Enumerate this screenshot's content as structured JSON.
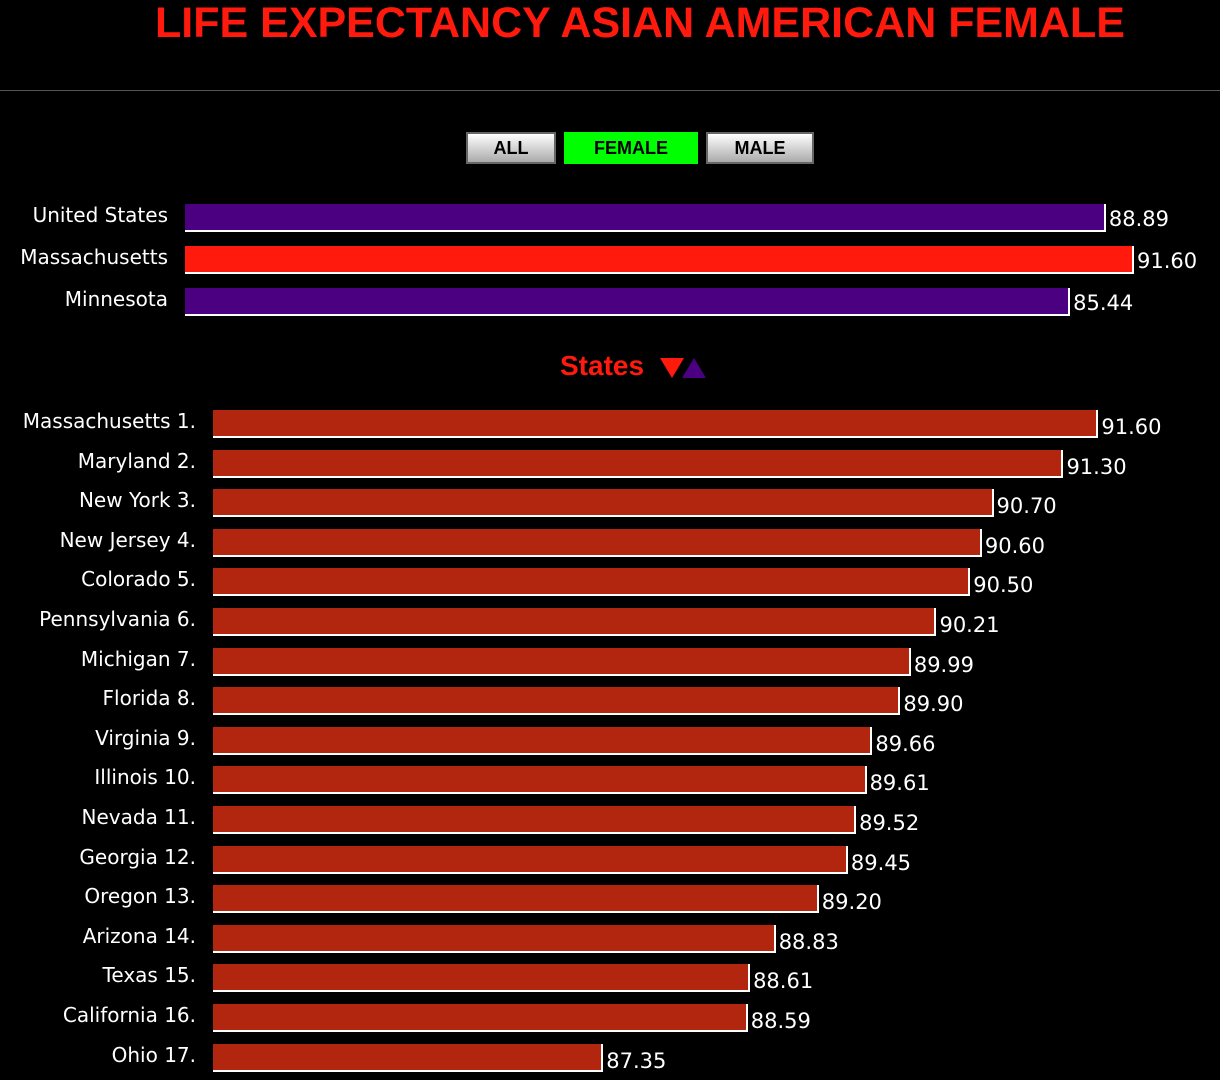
{
  "chart_data": {
    "type": "bar",
    "title": "LIFE EXPECTANCY ASIAN AMERICAN FEMALE",
    "summary": {
      "categories": [
        "United States",
        "Massachusetts",
        "Minnesota"
      ],
      "values": [
        88.89,
        91.6,
        85.44
      ],
      "colors": [
        "#4b0082",
        "#ff1a0d",
        "#4b0082"
      ],
      "xlim": [
        0,
        93
      ]
    },
    "states": {
      "heading": "States",
      "categories": [
        "Massachusetts 1.",
        "Maryland 2.",
        "New York 3.",
        "New Jersey 4.",
        "Colorado 5.",
        "Pennsylvania 6.",
        "Michigan 7.",
        "Florida 8.",
        "Virginia 9.",
        "Illinois 10.",
        "Nevada 11.",
        "Georgia 12.",
        "Oregon 13.",
        "Arizona 14.",
        "Texas 15.",
        "California 16.",
        "Ohio 17."
      ],
      "values": [
        91.6,
        91.3,
        90.7,
        90.6,
        90.5,
        90.21,
        89.99,
        89.9,
        89.66,
        89.61,
        89.52,
        89.45,
        89.2,
        88.83,
        88.61,
        88.59,
        87.35
      ],
      "color": "#b22610",
      "xlim": [
        84,
        92
      ]
    }
  },
  "filters": {
    "buttons": [
      "ALL",
      "FEMALE",
      "MALE"
    ],
    "active": "FEMALE"
  },
  "sort_icons": {
    "descending": "#ff1a0d",
    "ascending": "#4b0082"
  }
}
